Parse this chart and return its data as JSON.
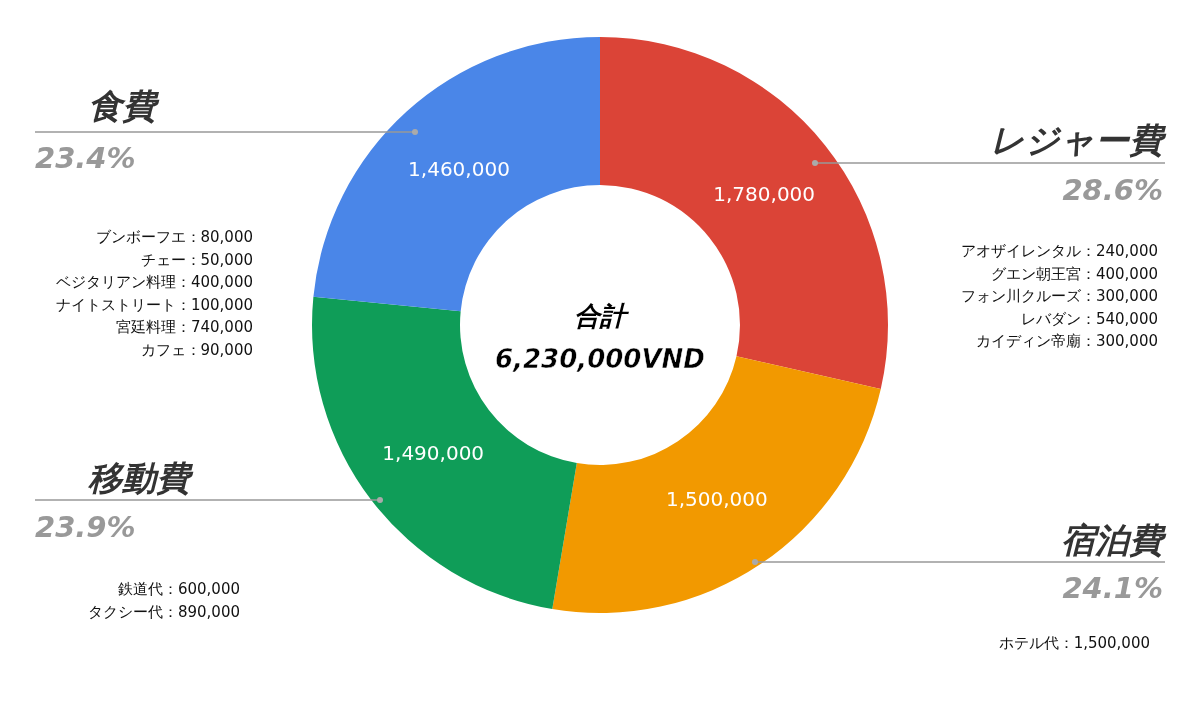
{
  "chart_data": {
    "type": "donut",
    "title": "合計",
    "subtitle": "6,230,000VND",
    "categories": [
      "レジャー費",
      "宿泊費",
      "移動費",
      "食費"
    ],
    "values": [
      1780000,
      1500000,
      1490000,
      1460000
    ],
    "colors": [
      "#db4437",
      "#f29900",
      "#0f9d58",
      "#4a86e8"
    ],
    "value_labels": [
      "1,780,000",
      "1,500,000",
      "1,490,000",
      "1,460,000"
    ],
    "annotations": [
      "28.6%\nアオザイレンタル：240,000\nグエン朝王宮：400,000\nフォン川クルーズ：300,000\nレバダン：540,000\nカイディン帝廟：300,000",
      "24.1%\nホテル代：1,500,000",
      "23.9%\n鉄道代：600,000\nタクシー代：890,000",
      "23.4%\nブンボーフエ：80,000\nチェー：50,000\nベジタリアン料理：400,000\nナイトストリート：100,000\n宮廷料理：740,000\nカフェ：90,000"
    ]
  }
}
